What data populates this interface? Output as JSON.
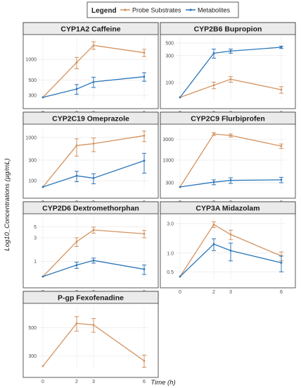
{
  "colors": {
    "probe": "#D4925E",
    "metab": "#2B76B9",
    "grid": "#e6e6e6",
    "strip": "#ebebeb"
  },
  "legend": {
    "title": "Legend",
    "items": [
      {
        "label": "Probe Substrates",
        "color": "#D4925E"
      },
      {
        "label": "Metabolites",
        "color": "#2B76B9"
      }
    ]
  },
  "axes": {
    "xlabel": "Time (h)",
    "ylabel": "Log10_Concentrations (µg/mL)"
  },
  "chart_data": {
    "type": "line",
    "y_scale": "log10",
    "x": [
      0,
      2,
      3,
      6
    ],
    "x_tick_labels": [
      "0",
      "2",
      "3",
      "6"
    ],
    "panels": [
      {
        "title": "CYP1A2 Caffeine",
        "ylim": [
          280,
          1900
        ],
        "yticks": [
          300,
          500,
          1000
        ],
        "series": [
          {
            "key": "probe",
            "values": [
              280,
              900,
              1600,
              1250
            ],
            "err": [
              null,
              170,
              200,
              150
            ]
          },
          {
            "key": "metab",
            "values": [
              280,
              370,
              470,
              560
            ],
            "err": [
              null,
              60,
              80,
              80
            ]
          }
        ]
      },
      {
        "title": "CYP2B6 Bupropion",
        "ylim": [
          55,
          560
        ],
        "yticks": [
          100,
          300,
          500
        ],
        "series": [
          {
            "key": "probe",
            "values": [
              55,
              90,
              115,
              75
            ],
            "err": [
              null,
              12,
              13,
              10
            ]
          },
          {
            "key": "metab",
            "values": [
              55,
              330,
              360,
              420
            ],
            "err": [
              null,
              60,
              30,
              20
            ]
          }
        ]
      },
      {
        "title": "CYP2C19 Omeprazole",
        "ylim": [
          72,
          1500
        ],
        "yticks": [
          100,
          300,
          1000
        ],
        "series": [
          {
            "key": "probe",
            "values": [
              72,
              650,
              720,
              1100
            ],
            "err": [
              null,
              280,
              250,
              300
            ]
          },
          {
            "key": "metab",
            "values": [
              72,
              130,
              115,
              290
            ],
            "err": [
              null,
              35,
              30,
              140
            ]
          }
        ]
      },
      {
        "title": "CYP2C9 Flurbiprofen",
        "ylim": [
          240,
          5000
        ],
        "yticks": [
          300,
          1000,
          3000
        ],
        "series": [
          {
            "key": "probe",
            "values": [
              240,
              4000,
              3700,
              2100
            ],
            "err": [
              null,
              300,
              300,
              250
            ]
          },
          {
            "key": "metab",
            "values": [
              240,
              310,
              340,
              350
            ],
            "err": [
              null,
              40,
              50,
              50
            ]
          }
        ]
      },
      {
        "title": "CYP2D6 Dextromethorphan",
        "ylim": [
          0.5,
          7
        ],
        "yticks": [
          1,
          3,
          5
        ],
        "series": [
          {
            "key": "probe",
            "values": [
              0.5,
              2.5,
              4.3,
              3.6
            ],
            "err": [
              null,
              0.5,
              0.6,
              0.6
            ]
          },
          {
            "key": "metab",
            "values": [
              0.5,
              0.85,
              1.05,
              0.7
            ],
            "err": [
              null,
              0.12,
              0.12,
              0.15
            ]
          }
        ]
      },
      {
        "title": "CYP3A Midazolam",
        "ylim": [
          0.42,
          3.5
        ],
        "yticks": [
          0.5,
          1.0,
          3.0
        ],
        "ytick_labels": [
          "0.5",
          "1.0",
          "3.0"
        ],
        "series": [
          {
            "key": "probe",
            "values": [
              0.42,
              2.9,
              2.0,
              0.9
            ],
            "err": [
              null,
              0.3,
              0.35,
              0.15
            ]
          },
          {
            "key": "metab",
            "values": [
              0.42,
              1.4,
              1.1,
              0.7
            ],
            "err": [
              null,
              0.3,
              0.35,
              0.2
            ]
          }
        ]
      },
      {
        "title": "P-gp Fexofenadine",
        "ylim": [
          250,
          700
        ],
        "yticks": [
          300,
          500
        ],
        "series": [
          {
            "key": "probe",
            "values": [
              250,
              540,
              525,
              275
            ],
            "err": [
              null,
              70,
              65,
              30
            ]
          }
        ]
      }
    ]
  }
}
